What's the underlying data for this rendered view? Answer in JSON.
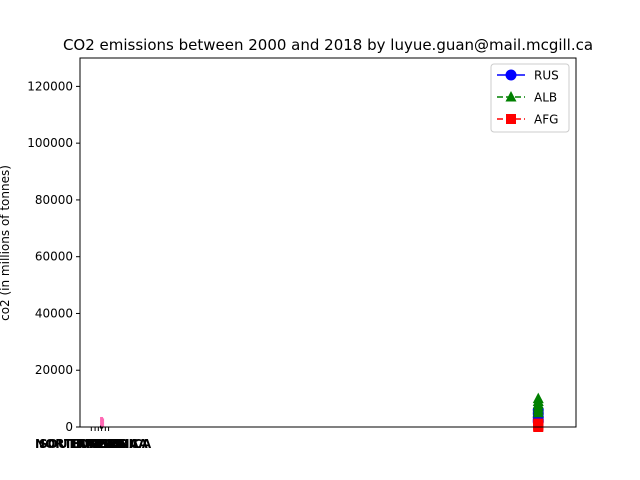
{
  "chart_data": {
    "type": "line",
    "title": "CO2 emissions between 2000 and 2018 by luyue.guan@mail.mcgill.ca",
    "xlabel": "",
    "ylabel": "co2 (in millions of tonnes)",
    "ylim": [
      0,
      130000
    ],
    "yticks": [
      0,
      20000,
      40000,
      60000,
      80000,
      100000,
      120000
    ],
    "xlim": [
      -2,
      90
    ],
    "x_tick_labels": [
      "NORTH AMERICA",
      "SOUTH AMERICA",
      "EUROPE",
      "AFRICA",
      "ASIA",
      "OCEANIA"
    ],
    "grid": false,
    "legend_position": "top-right",
    "series": [
      {
        "name": "RUS",
        "color": "#0000ff",
        "linestyle": "solid",
        "marker": "circle",
        "points": [
          {
            "x": 83,
            "y": 1800
          },
          {
            "x": 83,
            "y": 2500
          },
          {
            "x": 83,
            "y": 3500
          },
          {
            "x": 83,
            "y": 4800
          },
          {
            "x": 83,
            "y": 6000
          }
        ]
      },
      {
        "name": "ALB",
        "color": "#008000",
        "linestyle": "dashed",
        "marker": "triangle",
        "points": [
          {
            "x": 83,
            "y": 5000
          },
          {
            "x": 83,
            "y": 6000
          },
          {
            "x": 83,
            "y": 7000
          },
          {
            "x": 83,
            "y": 8000
          },
          {
            "x": 83,
            "y": 9000
          },
          {
            "x": 83,
            "y": 10000
          }
        ]
      },
      {
        "name": "AFG",
        "color": "#ff0000",
        "linestyle": "dashed",
        "marker": "square",
        "points": [
          {
            "x": 83,
            "y": 0
          },
          {
            "x": 83,
            "y": 300
          },
          {
            "x": 83,
            "y": 600
          },
          {
            "x": 83,
            "y": 900
          },
          {
            "x": 83,
            "y": 1200
          }
        ]
      }
    ],
    "cluster_near_origin": {
      "color": "#ff69b4",
      "x": 2,
      "y_values": [
        0,
        500,
        1000,
        1500,
        2000,
        2500,
        3000
      ]
    }
  }
}
